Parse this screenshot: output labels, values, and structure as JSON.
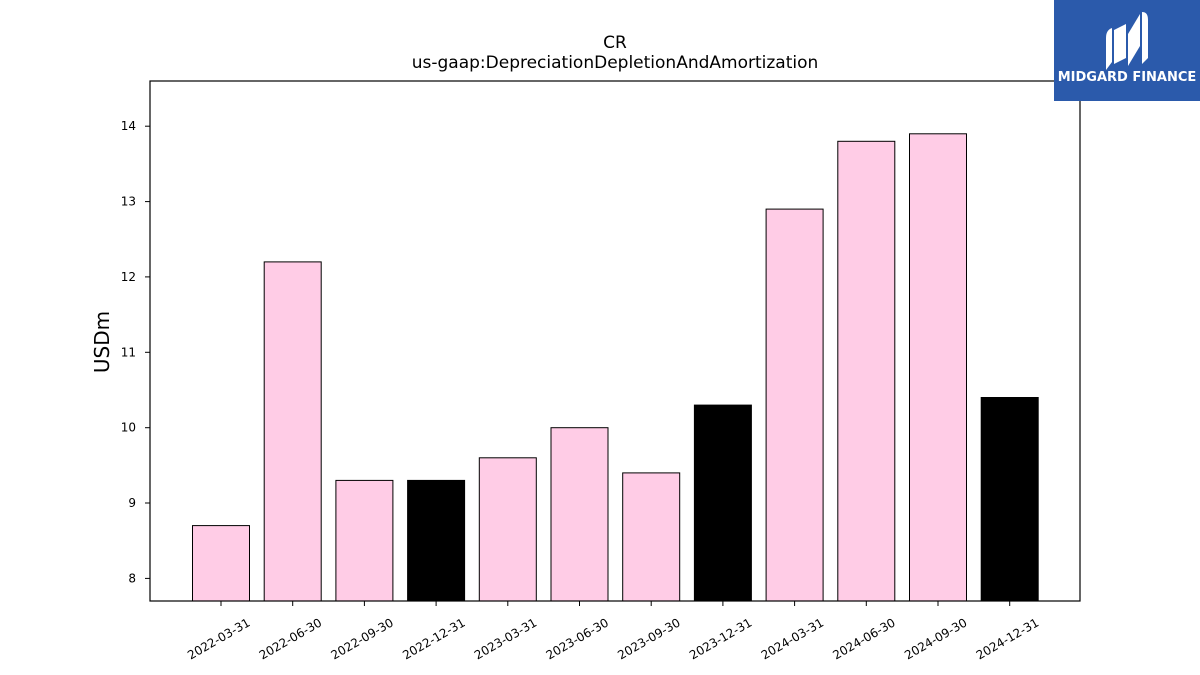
{
  "chart_data": {
    "type": "bar",
    "title": "CR",
    "subtitle": "us-gaap:DepreciationDepletionAndAmortization",
    "xlabel": "",
    "ylabel": "USDm",
    "categories": [
      "2022-03-31",
      "2022-06-30",
      "2022-09-30",
      "2022-12-31",
      "2023-03-31",
      "2023-06-30",
      "2023-09-30",
      "2023-12-31",
      "2024-03-31",
      "2024-06-30",
      "2024-09-30",
      "2024-12-31"
    ],
    "values": [
      8.7,
      12.2,
      9.3,
      9.3,
      9.6,
      10.0,
      9.4,
      10.3,
      12.9,
      13.8,
      13.9,
      10.4
    ],
    "bar_colors": [
      "#ffcce6",
      "#ffcce6",
      "#ffcce6",
      "#000000",
      "#ffcce6",
      "#ffcce6",
      "#ffcce6",
      "#000000",
      "#ffcce6",
      "#ffcce6",
      "#ffcce6",
      "#000000"
    ],
    "ylim": [
      7.7,
      14.6
    ],
    "yticks": [
      8,
      9,
      10,
      11,
      12,
      13,
      14
    ],
    "grid": false,
    "legend": "none"
  },
  "logo": {
    "text": "MIDGARD FINANCE",
    "background": "#2b5aab",
    "icon": "midgard-logo-icon"
  }
}
